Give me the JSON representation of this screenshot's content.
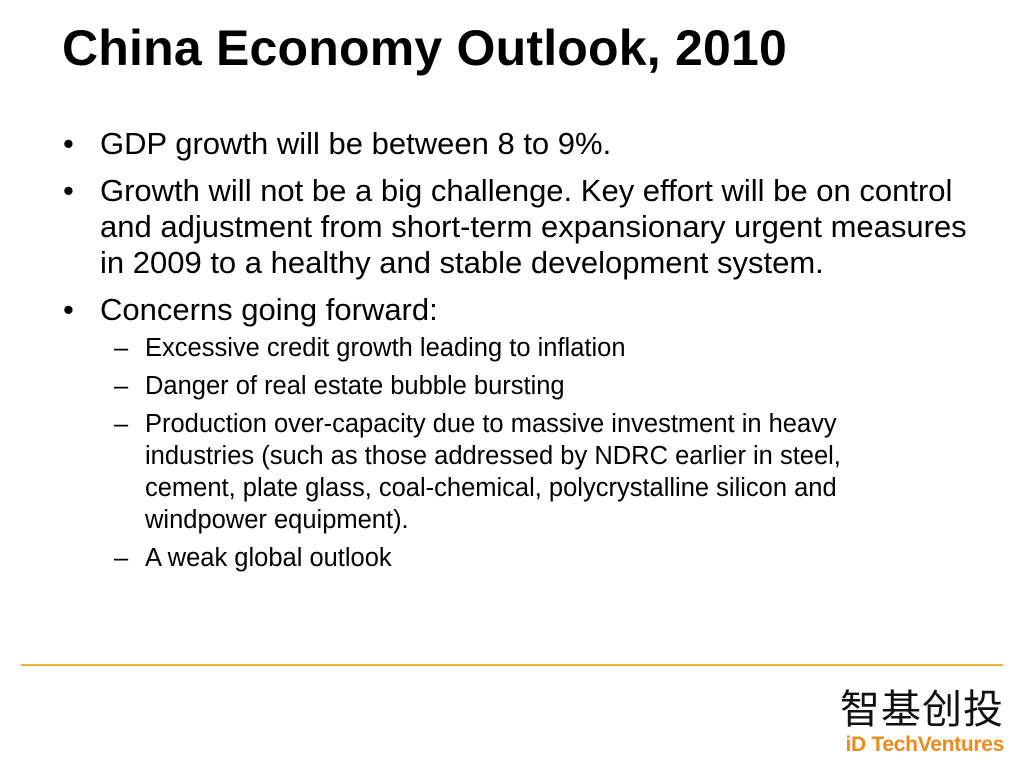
{
  "slide": {
    "title": "China Economy Outlook, 2010",
    "bullets": [
      {
        "marker": "•",
        "text": "GDP growth will be between 8 to 9%."
      },
      {
        "marker": "•",
        "text": "Growth will not be a big challenge.  Key effort will be on control and adjustment from short-term expansionary urgent measures in 2009 to a healthy and stable development system."
      },
      {
        "marker": "•",
        "text": "Concerns going forward:",
        "sub": [
          {
            "marker": "–",
            "text": "Excessive credit growth leading to inflation"
          },
          {
            "marker": "–",
            "text": "Danger of real estate bubble bursting"
          },
          {
            "marker": "–",
            "text": "Production over-capacity due to massive investment in heavy industries (such as those addressed by NDRC earlier in steel, cement, plate glass, coal-chemical, polycrystalline silicon and windpower equipment)."
          },
          {
            "marker": "–",
            "text": "A weak global outlook"
          }
        ]
      }
    ]
  },
  "footer": {
    "rule_color": "#f2b23d",
    "logo": {
      "chinese": "智基创投",
      "english": "iD TechVentures",
      "english_color": "#f08a1c"
    }
  }
}
